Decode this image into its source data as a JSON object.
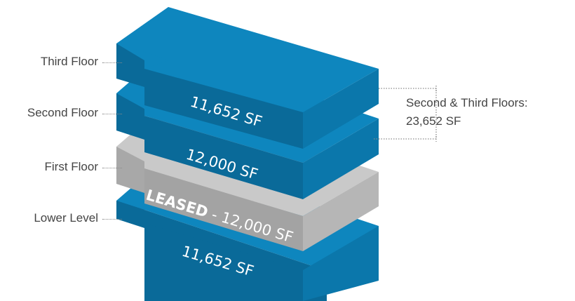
{
  "floors": [
    {
      "label": "Third Floor",
      "area": "11,652 SF",
      "status": "available",
      "color": "#0e86be"
    },
    {
      "label": "Second Floor",
      "area": "12,000 SF",
      "status": "available",
      "color": "#0e86be"
    },
    {
      "label": "First Floor",
      "leased_label": "LEASED",
      "area": "12,000 SF",
      "status": "leased",
      "color": "#bdbdbd"
    },
    {
      "label": "Lower Level",
      "area": "11,652 SF",
      "status": "available",
      "color": "#0e86be"
    }
  ],
  "first_floor_text": "LEASED - 12,000 SF",
  "callout": {
    "line1": "Second & Third Floors:",
    "line2": "23,652 SF"
  },
  "colors": {
    "blue_top": "#0e86be",
    "blue_front": "#0a6a99",
    "blue_side": "#0b77ab",
    "gray_top": "#c9c9c9",
    "gray_front": "#a8a8a8",
    "gray_side": "#b6b6b6",
    "label_text": "#444444"
  }
}
